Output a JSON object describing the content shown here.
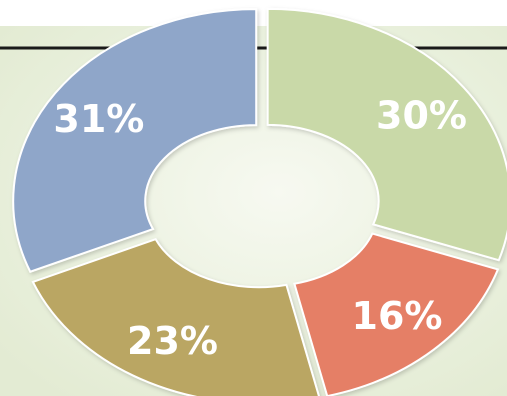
{
  "chart_data": {
    "type": "pie",
    "variant": "donut",
    "title": "",
    "categories": [
      "",
      "",
      "",
      ""
    ],
    "values": [
      30,
      16,
      23,
      31
    ],
    "labels": [
      "30%",
      "16%",
      "23%",
      "31%"
    ],
    "colors": [
      "#c9d9a8",
      "#e57f66",
      "#baa663",
      "#8fa6c9"
    ],
    "legend": "none"
  },
  "colors": {
    "background": "#eef3e6",
    "header_rule": "#1a1a1a",
    "slice_border": "#ffffff"
  }
}
